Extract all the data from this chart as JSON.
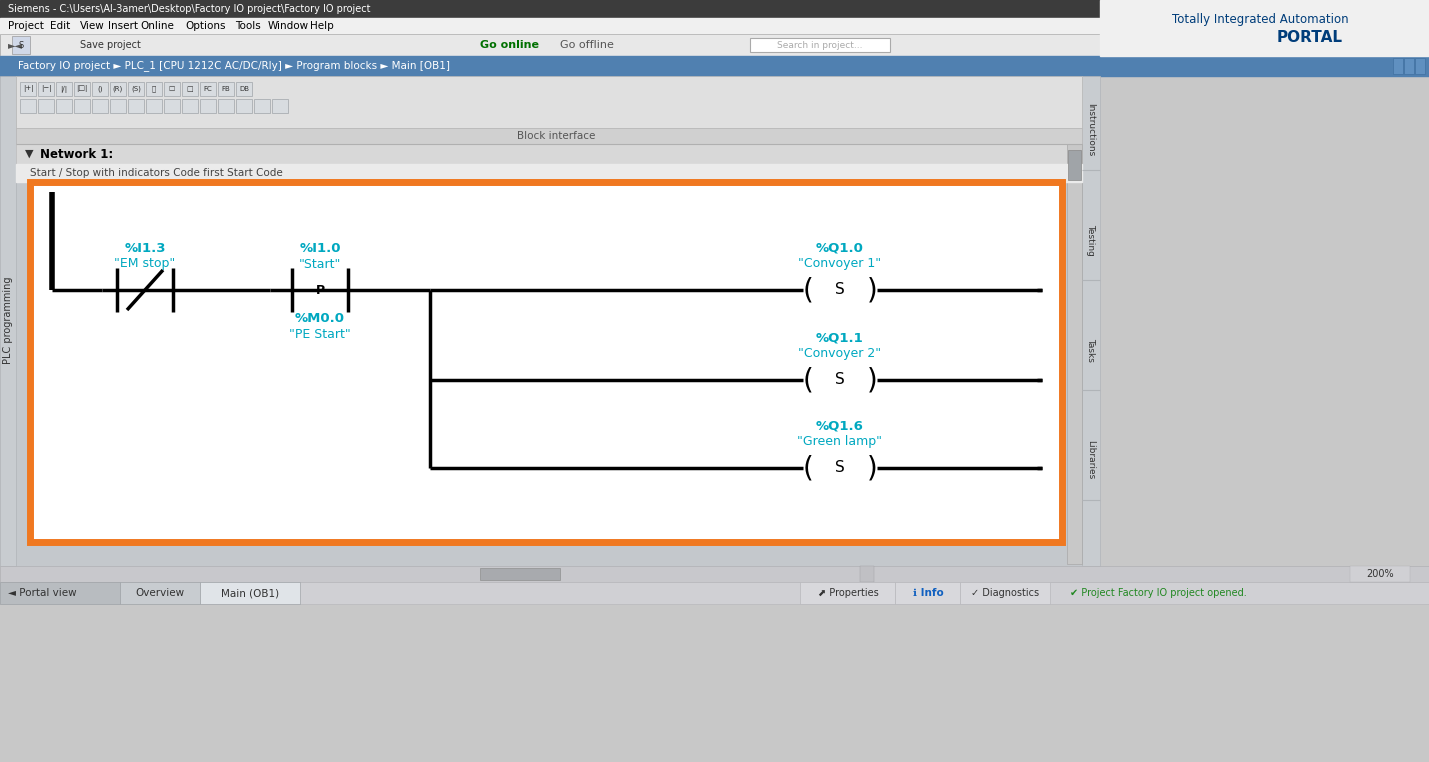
{
  "window_title": "Siemens - C:\\Users\\Al-3amer\\Desktop\\Factory IO project\\Factory IO project",
  "breadcrumb": "Factory IO project ► PLC_1 [CPU 1212C AC/DC/Rly] ► Program blocks ► Main [OB1]",
  "tia_line1": "Totally Integrated Automation",
  "tia_line2": "PORTAL",
  "network_label": "Network 1:",
  "network_comment": "Start / Stop with indicators Code first Start Code",
  "bg_color": "#c8c8c8",
  "content_bg": "#ffffff",
  "orange_border": "#f07820",
  "cyan_color": "#00a8c0",
  "black": "#000000",
  "title_bar_bg": "#404040",
  "menu_bar_bg": "#f0f0f0",
  "toolbar_bg": "#e8e8e8",
  "ladder_toolbar_bg": "#e0e0e0",
  "network_header_bg": "#d8d8d8",
  "breadcrumb_bg": "#5080b0",
  "working_area_bg": "#c0c0c8",
  "siemens_blue": "#003d7a",
  "contact_nc_tag": "%I1.3",
  "contact_nc_name": "\"EM stop\"",
  "contact_p_tag": "%I1.0",
  "contact_p_name": "\"Start\"",
  "memory_tag": "%M0.0",
  "memory_name": "\"PE Start\"",
  "coil1_tag": "%Q1.0",
  "coil1_name": "\"Convoyer 1\"",
  "coil2_tag": "%Q1.1",
  "coil2_name": "\"Convoyer 2\"",
  "coil3_tag": "%Q1.6",
  "coil3_name": "\"Green lamp\"",
  "side_tabs": [
    "Instructions",
    "Testing",
    "Tasks",
    "Libraries"
  ],
  "left_tab": "PLC programming",
  "menu_items": [
    "Project",
    "Edit",
    "View",
    "Insert",
    "Online",
    "Options",
    "Tools",
    "Window",
    "Help"
  ]
}
